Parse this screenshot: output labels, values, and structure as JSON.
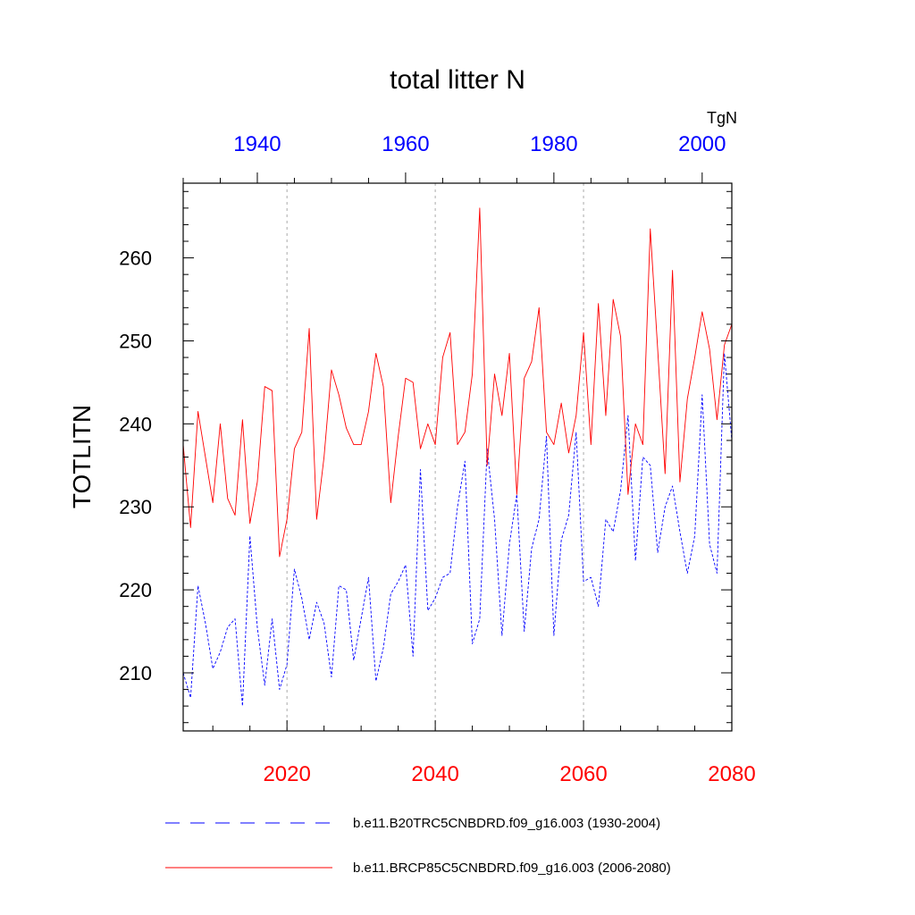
{
  "chart_data": {
    "type": "line",
    "title": "total litter N",
    "ylabel": "TOTLITN",
    "units": "TgN",
    "ylim": [
      203,
      269
    ],
    "yticks": [
      210,
      220,
      230,
      240,
      250,
      260
    ],
    "bottom_axis": {
      "range": [
        2006,
        2080
      ],
      "ticks": [
        2020,
        2040,
        2060,
        2080
      ],
      "color": "#ff0000"
    },
    "top_axis": {
      "range": [
        1930,
        2004
      ],
      "ticks": [
        1940,
        1960,
        1980,
        2000
      ],
      "color": "#0000ff"
    },
    "series": [
      {
        "name": "b.e11.B20TRC5CNBDRD.f09_g16.003 (1930-2004)",
        "axis": "top",
        "color": "#0000ff",
        "style": "dashed",
        "x_start": 1930,
        "values": [
          210.0,
          207.0,
          220.5,
          216.0,
          210.5,
          212.5,
          215.5,
          216.5,
          206.0,
          226.5,
          215.5,
          208.5,
          216.5,
          208.0,
          211.0,
          222.5,
          219.0,
          214.0,
          218.5,
          216.0,
          209.5,
          220.5,
          220.0,
          211.5,
          216.5,
          221.5,
          209.0,
          213.0,
          219.5,
          221.0,
          223.0,
          212.0,
          234.5,
          217.5,
          219.0,
          221.5,
          222.0,
          230.0,
          235.5,
          213.5,
          216.5,
          237.0,
          228.5,
          214.5,
          225.5,
          231.5,
          215.0,
          225.0,
          228.5,
          238.5,
          214.5,
          226.0,
          229.0,
          239.0,
          221.0,
          221.5,
          218.0,
          228.5,
          227.0,
          232.0,
          241.0,
          223.5,
          236.0,
          235.0,
          224.5,
          230.0,
          232.5,
          227.0,
          222.0,
          226.5,
          243.5,
          225.5,
          222.0,
          248.5,
          238.0
        ]
      },
      {
        "name": "b.e11.BRCP85C5CNBDRD.f09_g16.003 (2006-2080)",
        "axis": "bottom",
        "color": "#ff0000",
        "style": "solid",
        "x_start": 2006,
        "values": [
          237.5,
          227.5,
          241.5,
          236.0,
          230.5,
          240.0,
          231.0,
          229.0,
          240.5,
          228.0,
          233.0,
          244.5,
          244.0,
          224.0,
          228.5,
          237.0,
          239.0,
          251.5,
          228.5,
          236.0,
          246.5,
          243.5,
          239.5,
          237.5,
          237.5,
          241.5,
          248.5,
          244.5,
          230.5,
          238.5,
          245.5,
          245.0,
          237.0,
          240.0,
          237.5,
          248.0,
          251.0,
          237.5,
          239.0,
          246.0,
          266.0,
          235.0,
          246.0,
          241.0,
          248.5,
          231.5,
          245.5,
          247.5,
          254.0,
          239.0,
          237.5,
          242.5,
          236.5,
          241.0,
          251.0,
          237.5,
          254.5,
          241.0,
          255.0,
          250.5,
          231.5,
          240.0,
          237.5,
          263.5,
          249.0,
          234.0,
          258.5,
          233.0,
          243.0,
          248.0,
          253.5,
          249.0,
          240.5,
          249.5,
          252.0
        ]
      }
    ]
  }
}
